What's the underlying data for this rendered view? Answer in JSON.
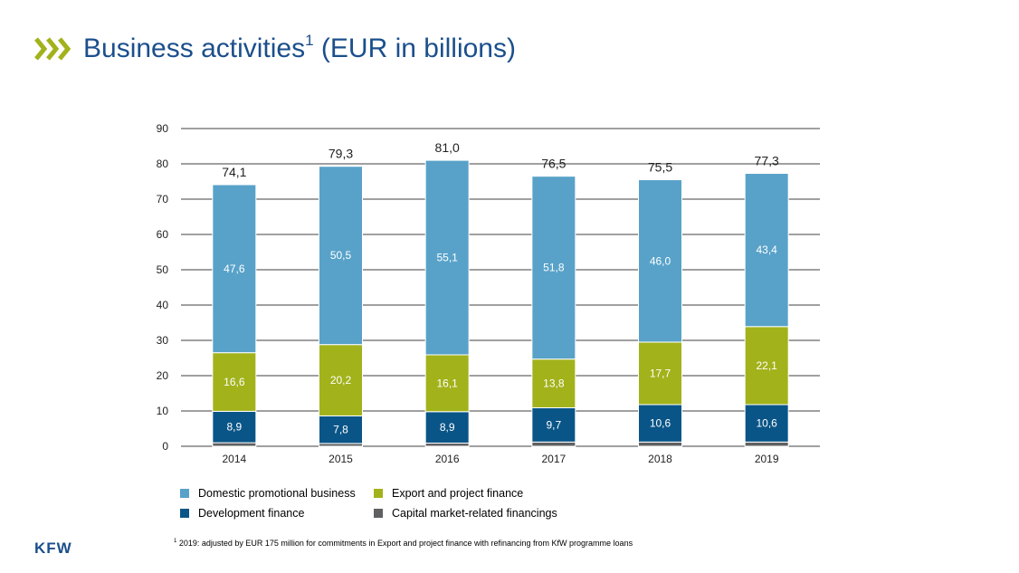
{
  "title": {
    "text": "Business activities",
    "sup": "1",
    "suffix": " (EUR in billions)"
  },
  "colors": {
    "domestic": "#58a2c9",
    "export": "#a2b21b",
    "development": "#0a5587",
    "capital": "#5f6062",
    "title": "#1b4f8c",
    "chevron": "#a2b21b"
  },
  "chart_data": {
    "type": "bar",
    "stacked": true,
    "categories": [
      "2014",
      "2015",
      "2016",
      "2017",
      "2018",
      "2019"
    ],
    "ylim": [
      0,
      90
    ],
    "yticks": [
      "0",
      "10",
      "20",
      "30",
      "40",
      "50",
      "60",
      "70",
      "80",
      "90"
    ],
    "grid": true,
    "series": [
      {
        "key": "capital",
        "name": "Capital market-related financings",
        "values": [
          1.0,
          0.8,
          0.9,
          1.2,
          1.2,
          1.2
        ],
        "labels": [
          "",
          "",
          "",
          "",
          "",
          ""
        ]
      },
      {
        "key": "development",
        "name": "Development finance",
        "values": [
          8.9,
          7.8,
          8.9,
          9.7,
          10.6,
          10.6
        ],
        "labels": [
          "8,9",
          "7,8",
          "8,9",
          "9,7",
          "10,6",
          "10,6"
        ]
      },
      {
        "key": "export",
        "name": "Export and project finance",
        "values": [
          16.6,
          20.2,
          16.1,
          13.8,
          17.7,
          22.1
        ],
        "labels": [
          "16,6",
          "20,2",
          "16,1",
          "13,8",
          "17,7",
          "22,1"
        ]
      },
      {
        "key": "domestic",
        "name": "Domestic promotional business",
        "values": [
          47.6,
          50.5,
          55.1,
          51.8,
          46.0,
          43.4
        ],
        "labels": [
          "47,6",
          "50,5",
          "55,1",
          "51,8",
          "46,0",
          "43,4"
        ]
      }
    ],
    "totals": [
      74.1,
      79.3,
      81.0,
      76.5,
      75.5,
      77.3
    ],
    "total_labels": [
      "74,1",
      "79,3",
      "81,0",
      "76,5",
      "75,5",
      "77,3"
    ],
    "legend_placement": "bottom"
  },
  "legend": [
    {
      "key": "domestic",
      "label": "Domestic promotional business"
    },
    {
      "key": "export",
      "label": "Export and project finance"
    },
    {
      "key": "development",
      "label": "Development finance"
    },
    {
      "key": "capital",
      "label": "Capital market-related financings"
    }
  ],
  "footnote": {
    "sup": "1",
    "text": " 2019: adjusted by EUR 175 million for commitments in Export and project finance with refinancing from KfW programme loans"
  },
  "logo": "KFW"
}
